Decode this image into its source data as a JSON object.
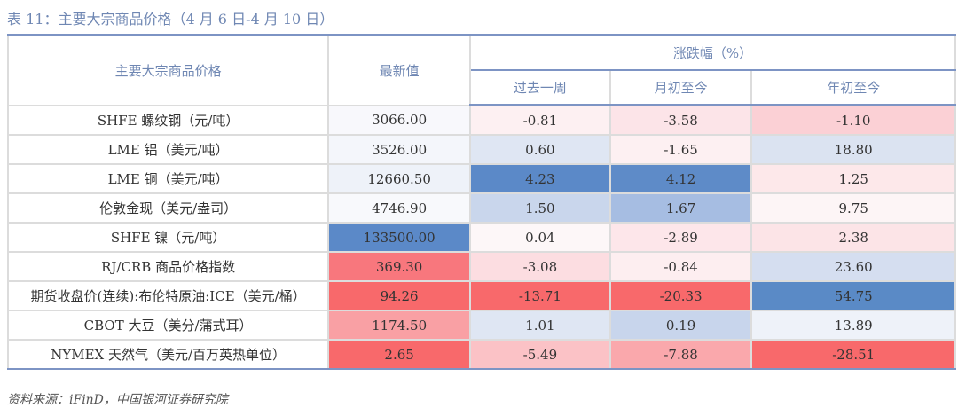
{
  "caption": "表 11：主要大宗商品价格（4 月 6 日-4 月 10 日）",
  "headers": {
    "name": "主要大宗商品价格",
    "latest": "最新值",
    "change_group": "涨跌幅（%）",
    "week": "过去一周",
    "mtd": "月初至今",
    "ytd": "年初至今"
  },
  "rows": [
    {
      "name": "SHFE 螺纹钢（元/吨）",
      "latest": "3066.00",
      "week": "-0.81",
      "mtd": "-3.58",
      "ytd": "-1.10",
      "colors": [
        "#f8f8fc",
        "#fdf0f2",
        "#fce4e8",
        "#fbd0d5"
      ]
    },
    {
      "name": "LME 铝（美元/吨）",
      "latest": "3526.00",
      "week": "0.60",
      "mtd": "-1.65",
      "ytd": "18.80",
      "colors": [
        "#f4f6fb",
        "#dfe6f3",
        "#fdf0f2",
        "#dbe3f1"
      ]
    },
    {
      "name": "LME 铜（美元/吨）",
      "latest": "12660.50",
      "week": "4.23",
      "mtd": "4.12",
      "ytd": "1.25",
      "colors": [
        "#eef2f9",
        "#5b89c8",
        "#5e8bc8",
        "#fde8ea"
      ]
    },
    {
      "name": "伦敦金现（美元/盎司）",
      "latest": "4746.90",
      "week": "1.50",
      "mtd": "1.67",
      "ytd": "9.75",
      "colors": [
        "#f8f9fc",
        "#c9d6ec",
        "#a6bde2",
        "#fdf5f6"
      ]
    },
    {
      "name": "SHFE 镍（元/吨）",
      "latest": "133500.00",
      "week": "0.04",
      "mtd": "-2.89",
      "ytd": "2.38",
      "colors": [
        "#5b89c8",
        "#fdf7f8",
        "#fde6ea",
        "#fce4e7"
      ]
    },
    {
      "name": "RJ/CRB 商品价格指数",
      "latest": "369.30",
      "week": "-3.08",
      "mtd": "-0.84",
      "ytd": "23.60",
      "colors": [
        "#f8777d",
        "#fcdde1",
        "#fdeef0",
        "#d5def0"
      ]
    },
    {
      "name": "期货收盘价(连续):布伦特原油:ICE（美元/桶）",
      "latest": "94.26",
      "week": "-13.71",
      "mtd": "-20.33",
      "ytd": "54.75",
      "colors": [
        "#f8696b",
        "#f8696b",
        "#f8696b",
        "#5a8ac6"
      ]
    },
    {
      "name": "CBOT 大豆（美分/蒲式耳）",
      "latest": "1174.50",
      "week": "1.01",
      "mtd": "0.19",
      "ytd": "13.89",
      "colors": [
        "#f9a0a4",
        "#dfe6f3",
        "#c8d5ec",
        "#eef2f9"
      ]
    },
    {
      "name": "NYMEX 天然气（美元/百万英热单位）",
      "latest": "2.65",
      "week": "-5.49",
      "mtd": "-7.88",
      "ytd": "-28.51",
      "colors": [
        "#f8696b",
        "#fbc2c6",
        "#faa8ac",
        "#f8696b"
      ]
    }
  ],
  "source": "资料来源：iFinD，中国银河证券研究院"
}
